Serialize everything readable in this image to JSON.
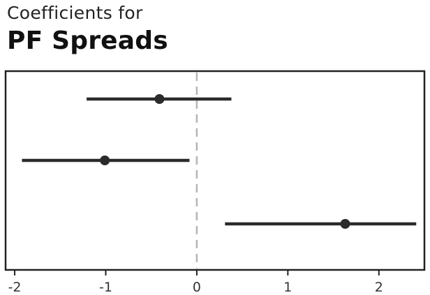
{
  "header": {
    "subtitle": "Coefficients for",
    "title": "PF Spreads"
  },
  "chart_data": {
    "type": "scatter",
    "subtype": "coefficient-plot",
    "title": "PF Spreads",
    "subtitle": "Coefficients for",
    "xlabel": "",
    "ylabel": "",
    "xlim": [
      -2.1,
      2.5
    ],
    "xticks": [
      -2,
      -1,
      0,
      1,
      2
    ],
    "xtick_labels": [
      "-2",
      "-1",
      "0",
      "1",
      "2"
    ],
    "reference_line": {
      "x": 0,
      "style": "dashed",
      "color": "#b5b5b5"
    },
    "grid": false,
    "points": [
      {
        "estimate": -0.41,
        "low": -1.21,
        "high": 0.38
      },
      {
        "estimate": -1.01,
        "low": -1.92,
        "high": -0.08
      },
      {
        "estimate": 1.63,
        "low": 0.31,
        "high": 2.41
      }
    ],
    "colors": {
      "marker": "#2b2b2b",
      "interval": "#2b2b2b",
      "frame": "#222222"
    }
  }
}
